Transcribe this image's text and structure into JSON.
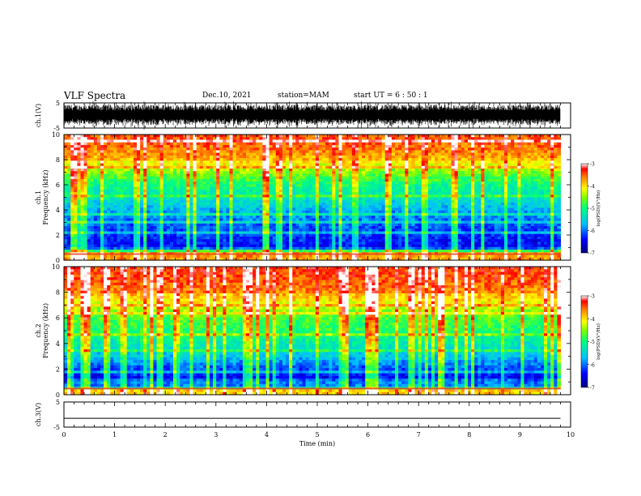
{
  "header": {
    "title": "VLF Spectra",
    "date": "Dec.10, 2021",
    "station": "station=MAM",
    "start": "start  UT  =   6  : 50 : 1"
  },
  "chart_data": [
    {
      "type": "line",
      "panel": "ch1-waveform",
      "ylabel": "ch.1(V)",
      "ytick_labels": [
        "5",
        "-5"
      ],
      "ylim": [
        -5,
        5
      ],
      "xlim": [
        0,
        10
      ],
      "note_values": "dense broadband waveform spanning roughly -4 to +4 V over 0–9.8 min"
    },
    {
      "type": "heatmap",
      "panel": "ch1-spectrogram",
      "ylabel": "ch.1\nFrequency  (kHz)",
      "ytick_labels": [
        "0",
        "2",
        "4",
        "6",
        "8",
        "10"
      ],
      "ylim": [
        0,
        10
      ],
      "xlim": [
        0,
        10
      ],
      "x_data_extent": [
        0,
        9.8
      ],
      "colorbar": {
        "label": "log(PSD)(V²/Hz)",
        "ticks": [
          "-3",
          "-4",
          "-5",
          "-6",
          "-7"
        ],
        "range": [
          -7,
          -3
        ]
      },
      "intensity_profile_by_freq_khz": [
        {
          "f": 0.3,
          "level": -3.6
        },
        {
          "f": 0.5,
          "level": -3.4
        },
        {
          "f": 1.0,
          "level": -6.3
        },
        {
          "f": 2.0,
          "level": -6.1
        },
        {
          "f": 3.0,
          "level": -5.9
        },
        {
          "f": 4.0,
          "level": -5.6
        },
        {
          "f": 5.0,
          "level": -5.2
        },
        {
          "f": 6.0,
          "level": -4.9
        },
        {
          "f": 7.0,
          "level": -4.4
        },
        {
          "f": 8.0,
          "level": -3.8
        },
        {
          "f": 9.0,
          "level": -3.5
        },
        {
          "f": 10.0,
          "level": -3.4
        }
      ]
    },
    {
      "type": "heatmap",
      "panel": "ch2-spectrogram",
      "ylabel": "ch.2\nFrequency  (kHz)",
      "ytick_labels": [
        "0",
        "2",
        "4",
        "6",
        "8",
        "10"
      ],
      "ylim": [
        0,
        10
      ],
      "xlim": [
        0,
        10
      ],
      "x_data_extent": [
        0,
        9.8
      ],
      "colorbar": {
        "label": "log(PSD)(V²/Hz)",
        "ticks": [
          "-3",
          "-4",
          "-5",
          "-6",
          "-7"
        ],
        "range": [
          -7,
          -3
        ]
      },
      "intensity_profile_by_freq_khz": [
        {
          "f": 0.2,
          "level": -3.8
        },
        {
          "f": 0.5,
          "level": -5.2
        },
        {
          "f": 1.0,
          "level": -6.5
        },
        {
          "f": 2.0,
          "level": -6.0
        },
        {
          "f": 3.0,
          "level": -5.5
        },
        {
          "f": 4.0,
          "level": -5.1
        },
        {
          "f": 5.0,
          "level": -4.8
        },
        {
          "f": 6.0,
          "level": -4.6
        },
        {
          "f": 7.0,
          "level": -4.1
        },
        {
          "f": 8.0,
          "level": -3.6
        },
        {
          "f": 9.0,
          "level": -3.4
        },
        {
          "f": 10.0,
          "level": -3.3
        }
      ]
    },
    {
      "type": "line",
      "panel": "ch3-waveform",
      "ylabel": "ch.3(V)",
      "ytick_labels": [
        "5",
        "-5"
      ],
      "ylim": [
        -5,
        5
      ],
      "xlim": [
        0,
        10
      ],
      "x_data_extent": [
        0,
        9.8
      ],
      "y": -1.5
    }
  ],
  "xaxis": {
    "label": "Time  (min)",
    "ticks": [
      "0",
      "1",
      "2",
      "3",
      "4",
      "5",
      "6",
      "7",
      "8",
      "9",
      "10"
    ],
    "range": [
      0,
      10
    ]
  }
}
